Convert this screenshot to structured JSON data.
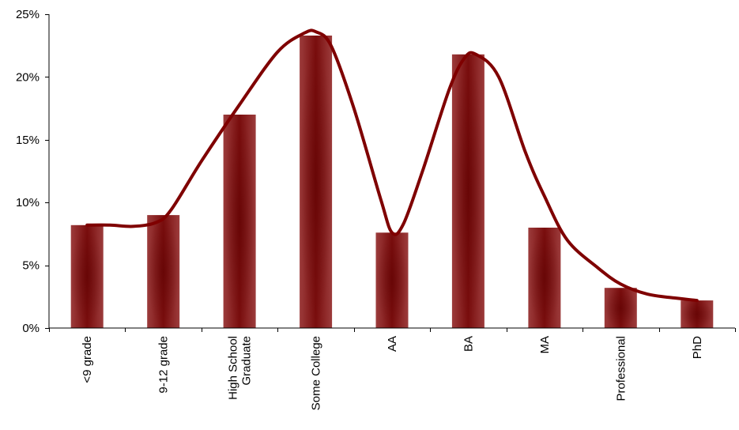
{
  "chart_data": {
    "type": "bar",
    "title": "",
    "xlabel": "",
    "ylabel": "",
    "categories": [
      [
        "<9 grade"
      ],
      [
        "9-12 grade"
      ],
      [
        "High School",
        "Graduate"
      ],
      [
        "Some College"
      ],
      [
        "AA"
      ],
      [
        "BA"
      ],
      [
        "MA"
      ],
      [
        "Professional"
      ],
      [
        "PhD"
      ]
    ],
    "values": [
      8.2,
      9.0,
      17.0,
      23.3,
      7.6,
      21.8,
      8.0,
      3.2,
      2.2
    ],
    "trend_curve": {
      "x": [
        0,
        0.3,
        0.6,
        0.9,
        1.1,
        1.5,
        2.0,
        2.5,
        2.85,
        3.0,
        3.2,
        3.5,
        3.85,
        4.0,
        4.15,
        4.4,
        4.75,
        4.95,
        5.1,
        5.4,
        5.75,
        6.0,
        6.3,
        6.7,
        7.0,
        7.35,
        7.7,
        8.0
      ],
      "y": [
        8.2,
        8.2,
        8.1,
        8.4,
        9.4,
        13.3,
        17.8,
        22.0,
        23.5,
        23.6,
        22.5,
        17.5,
        10.3,
        7.6,
        8.3,
        12.5,
        19.0,
        21.5,
        21.8,
        20.0,
        14.0,
        10.5,
        7.0,
        4.8,
        3.5,
        2.7,
        2.4,
        2.2
      ]
    },
    "ylim": [
      0,
      25
    ],
    "yticks": [
      0,
      5,
      10,
      15,
      20,
      25
    ],
    "ytick_labels": [
      "0%",
      "5%",
      "10%",
      "15%",
      "20%",
      "25%"
    ],
    "grid": false,
    "legend": "none",
    "colors": {
      "bar_edge": "#9c3c3c",
      "bar_center": "#7a0d0d",
      "curve": "#7f0000",
      "axis": "#000000"
    }
  }
}
